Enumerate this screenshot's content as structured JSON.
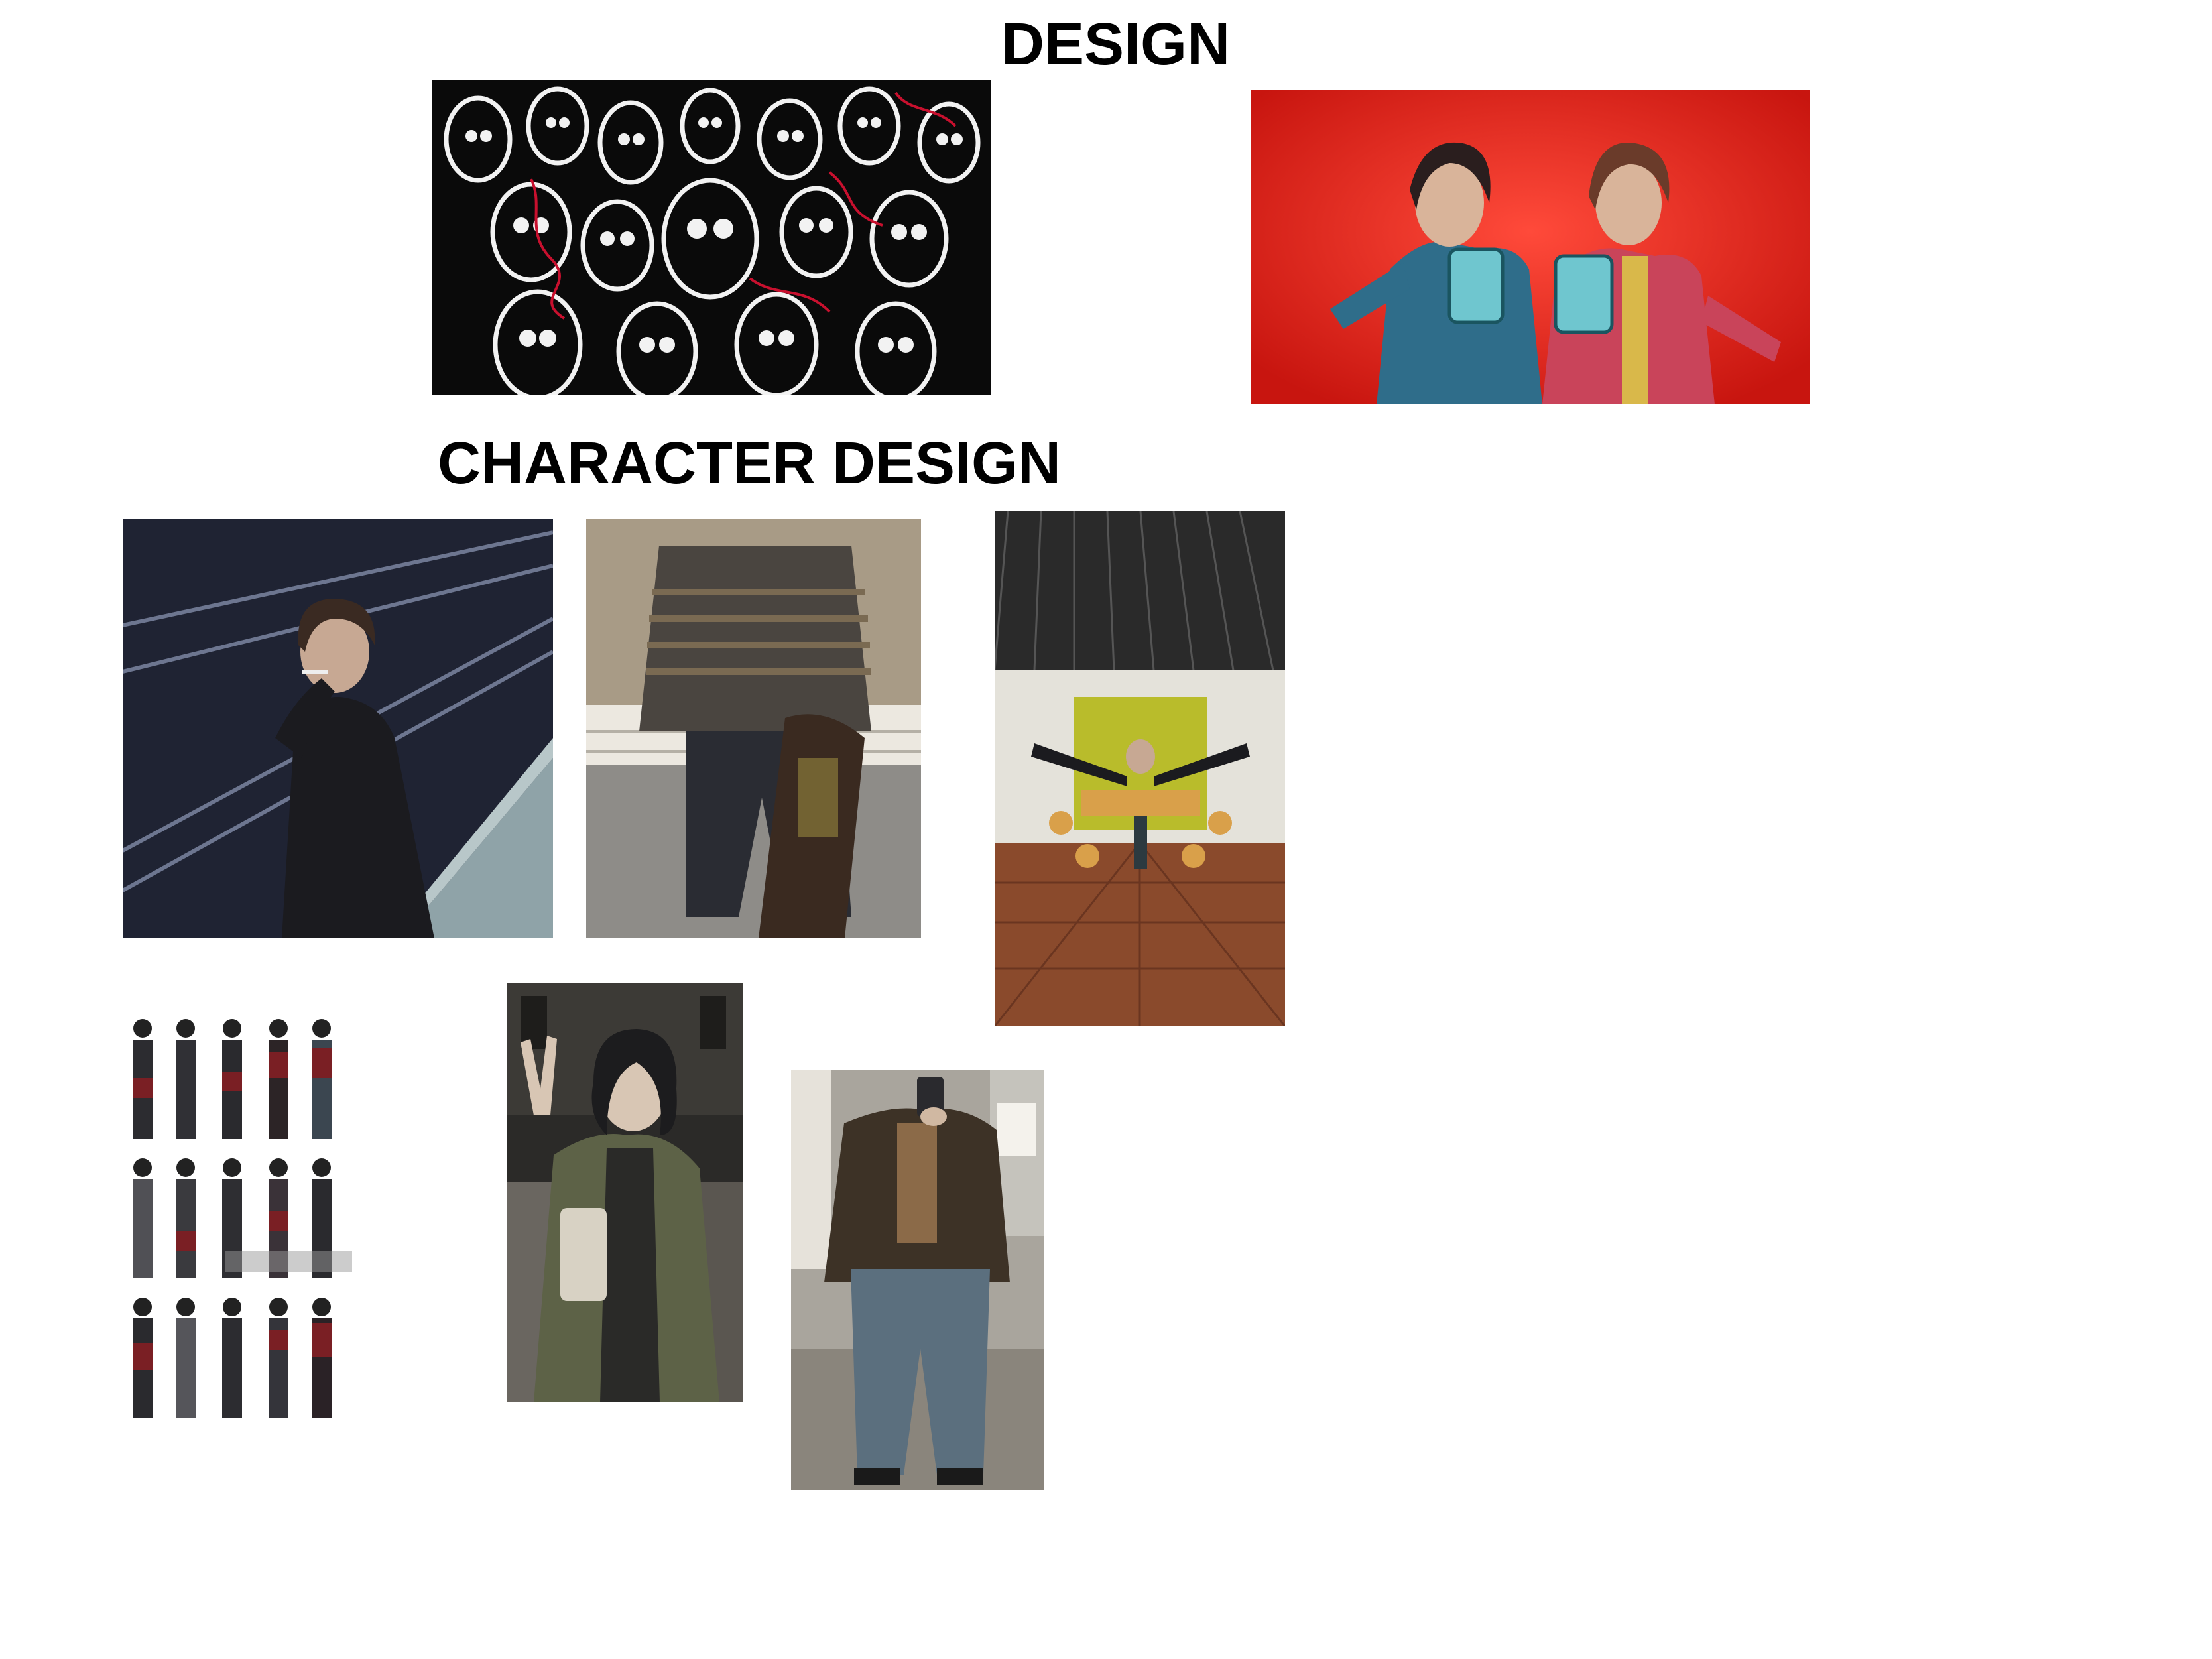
{
  "headings": {
    "design": "DESIGN",
    "character_design": "CHARACTER DESIGN"
  },
  "images": [
    {
      "name": "crowd-illustration",
      "description_colors": [
        "#000000",
        "#ffffff",
        "#c8102e"
      ]
    },
    {
      "name": "red-background-characters",
      "description_colors": [
        "#e8201f",
        "#2f6d8a",
        "#d9b84a"
      ]
    },
    {
      "name": "railway-smoking-photo",
      "description_colors": [
        "#1c2230",
        "#3a3f48",
        "#8fa3a8"
      ]
    },
    {
      "name": "knit-sweater-photo",
      "description_colors": [
        "#4a4540",
        "#2a2c33",
        "#c9c3b8"
      ]
    },
    {
      "name": "cafeteria-photo",
      "description_colors": [
        "#b9bc2b",
        "#8a4a2c",
        "#e8e6df"
      ]
    },
    {
      "name": "lookbook-grid",
      "description_colors": [
        "#ffffff",
        "#222222",
        "#7a1f24"
      ]
    },
    {
      "name": "peace-sign-photo",
      "description_colors": [
        "#2b2a28",
        "#5d6247",
        "#d8d2c4"
      ]
    },
    {
      "name": "mirror-selfie-photo",
      "description_colors": [
        "#8a857c",
        "#3d3226",
        "#5b6f7e"
      ]
    }
  ]
}
